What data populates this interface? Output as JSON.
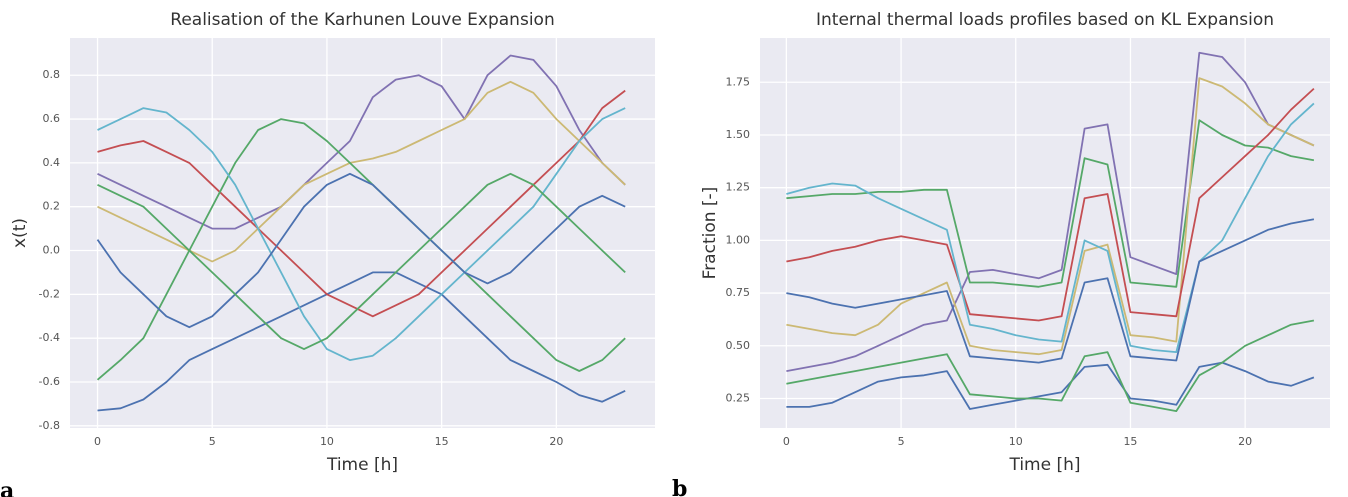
{
  "chart_data": [
    {
      "type": "line",
      "panel_label": "a",
      "title": "Realisation of the Karhunen Louve Expansion",
      "xlabel": "Time [h]",
      "ylabel": "x(t)",
      "x": [
        0,
        1,
        2,
        3,
        4,
        5,
        6,
        7,
        8,
        9,
        10,
        11,
        12,
        13,
        14,
        15,
        16,
        17,
        18,
        19,
        20,
        21,
        22,
        23
      ],
      "xlim": [
        -1.2,
        24.3
      ],
      "ylim": [
        -0.81,
        0.97
      ],
      "xticks": [
        0,
        5,
        10,
        15,
        20
      ],
      "yticks": [
        -0.8,
        -0.6,
        -0.4,
        -0.2,
        {
          "value": 0,
          "label": "0.0"
        },
        0.2,
        0.4,
        0.6,
        0.8
      ],
      "grid": true,
      "series": [
        {
          "color": "#8172b2",
          "values": [
            0.35,
            0.3,
            0.25,
            0.2,
            0.15,
            0.1,
            0.1,
            0.15,
            0.2,
            0.3,
            0.4,
            0.5,
            0.7,
            0.78,
            0.8,
            0.75,
            0.6,
            0.8,
            0.89,
            0.87,
            0.75,
            0.55,
            0.4,
            0.3
          ]
        },
        {
          "color": "#4c72b0",
          "values": [
            -0.73,
            -0.72,
            -0.68,
            -0.6,
            -0.5,
            -0.45,
            -0.4,
            -0.35,
            -0.3,
            -0.25,
            -0.2,
            -0.15,
            -0.1,
            -0.1,
            -0.15,
            -0.2,
            -0.3,
            -0.4,
            -0.5,
            -0.55,
            -0.6,
            -0.66,
            -0.69,
            -0.64
          ]
        },
        {
          "color": "#ccb974",
          "values": [
            0.2,
            0.15,
            0.1,
            0.05,
            0,
            -0.05,
            0,
            0.1,
            0.2,
            0.3,
            0.35,
            0.4,
            0.42,
            0.45,
            0.5,
            0.55,
            0.6,
            0.72,
            0.77,
            0.72,
            0.6,
            0.5,
            0.4,
            0.3
          ]
        },
        {
          "color": "#c44e52",
          "values": [
            0.45,
            0.48,
            0.5,
            0.45,
            0.4,
            0.3,
            0.2,
            0.1,
            0,
            -0.1,
            -0.2,
            -0.25,
            -0.3,
            -0.25,
            -0.2,
            -0.1,
            0,
            0.1,
            0.2,
            0.3,
            0.4,
            0.5,
            0.65,
            0.73
          ]
        },
        {
          "color": "#55a868",
          "values": [
            -0.59,
            -0.5,
            -0.4,
            -0.2,
            0,
            0.2,
            0.4,
            0.55,
            0.6,
            0.58,
            0.5,
            0.4,
            0.3,
            0.2,
            0.1,
            0,
            -0.1,
            -0.2,
            -0.3,
            -0.4,
            -0.5,
            -0.55,
            -0.5,
            -0.4
          ]
        },
        {
          "color": "#64b5cd",
          "values": [
            0.55,
            0.6,
            0.65,
            0.63,
            0.55,
            0.45,
            0.3,
            0.1,
            -0.1,
            -0.3,
            -0.45,
            -0.5,
            -0.48,
            -0.4,
            -0.3,
            -0.2,
            -0.1,
            0,
            0.1,
            0.2,
            0.35,
            0.5,
            0.6,
            0.65
          ]
        },
        {
          "color": "#4c72b0",
          "values": [
            0.05,
            -0.1,
            -0.2,
            -0.3,
            -0.35,
            -0.3,
            -0.2,
            -0.1,
            0.05,
            0.2,
            0.3,
            0.35,
            0.3,
            0.2,
            0.1,
            0,
            -0.1,
            -0.15,
            -0.1,
            0,
            0.1,
            0.2,
            0.25,
            0.2
          ]
        },
        {
          "color": "#55a868",
          "values": [
            0.3,
            0.25,
            0.2,
            0.1,
            0,
            -0.1,
            -0.2,
            -0.3,
            -0.4,
            -0.45,
            -0.4,
            -0.3,
            -0.2,
            -0.1,
            0,
            0.1,
            0.2,
            0.3,
            0.35,
            0.3,
            0.2,
            0.1,
            0,
            -0.1
          ]
        }
      ]
    },
    {
      "type": "line",
      "panel_label": "b",
      "title": "Internal thermal loads profiles based on KL Expansion",
      "xlabel": "Time [h]",
      "ylabel": "Fraction [-]",
      "x": [
        0,
        1,
        2,
        3,
        4,
        5,
        6,
        7,
        8,
        9,
        10,
        11,
        12,
        13,
        14,
        15,
        16,
        17,
        18,
        19,
        20,
        21,
        22,
        23
      ],
      "xlim": [
        -1.15,
        23.7
      ],
      "ylim": [
        0.11,
        1.96
      ],
      "xticks": [
        0,
        5,
        10,
        15,
        20
      ],
      "yticks": [
        0.25,
        {
          "value": 0.5,
          "label": "0.50"
        },
        0.75,
        {
          "value": 1,
          "label": "1.00"
        },
        1.25,
        {
          "value": 1.5,
          "label": "1.50"
        },
        1.75
      ],
      "grid": true,
      "series": [
        {
          "color": "#8172b2",
          "values": [
            0.38,
            0.4,
            0.42,
            0.45,
            0.5,
            0.55,
            0.6,
            0.62,
            0.85,
            0.86,
            0.84,
            0.82,
            0.86,
            1.53,
            1.55,
            0.92,
            0.88,
            0.84,
            1.89,
            1.87,
            1.75,
            1.55,
            1.5,
            1.45
          ]
        },
        {
          "color": "#4c72b0",
          "values": [
            0.21,
            0.21,
            0.23,
            0.28,
            0.33,
            0.35,
            0.36,
            0.38,
            0.2,
            0.22,
            0.24,
            0.26,
            0.28,
            0.4,
            0.41,
            0.25,
            0.24,
            0.22,
            0.4,
            0.42,
            0.38,
            0.33,
            0.31,
            0.35
          ]
        },
        {
          "color": "#55a868",
          "values": [
            1.2,
            1.21,
            1.22,
            1.22,
            1.23,
            1.23,
            1.24,
            1.24,
            0.8,
            0.8,
            0.79,
            0.78,
            0.8,
            1.39,
            1.36,
            0.8,
            0.79,
            0.78,
            1.57,
            1.5,
            1.45,
            1.44,
            1.4,
            1.38
          ]
        },
        {
          "color": "#ccb974",
          "values": [
            0.6,
            0.58,
            0.56,
            0.55,
            0.6,
            0.7,
            0.75,
            0.8,
            0.5,
            0.48,
            0.47,
            0.46,
            0.48,
            0.95,
            0.98,
            0.55,
            0.54,
            0.52,
            1.77,
            1.73,
            1.65,
            1.55,
            1.5,
            1.45
          ]
        },
        {
          "color": "#c44e52",
          "values": [
            0.9,
            0.92,
            0.95,
            0.97,
            1.0,
            1.02,
            1.0,
            0.98,
            0.65,
            0.64,
            0.63,
            0.62,
            0.64,
            1.2,
            1.22,
            0.66,
            0.65,
            0.64,
            1.2,
            1.3,
            1.4,
            1.5,
            1.62,
            1.72
          ]
        },
        {
          "color": "#64b5cd",
          "values": [
            1.22,
            1.25,
            1.27,
            1.26,
            1.2,
            1.15,
            1.1,
            1.05,
            0.6,
            0.58,
            0.55,
            0.53,
            0.52,
            1.0,
            0.95,
            0.5,
            0.48,
            0.47,
            0.9,
            1.0,
            1.2,
            1.4,
            1.55,
            1.65
          ]
        },
        {
          "color": "#55a868",
          "values": [
            0.32,
            0.34,
            0.36,
            0.38,
            0.4,
            0.42,
            0.44,
            0.46,
            0.27,
            0.26,
            0.25,
            0.25,
            0.24,
            0.45,
            0.47,
            0.23,
            0.21,
            0.19,
            0.36,
            0.42,
            0.5,
            0.55,
            0.6,
            0.62
          ]
        },
        {
          "color": "#4c72b0",
          "values": [
            0.75,
            0.73,
            0.7,
            0.68,
            0.7,
            0.72,
            0.74,
            0.76,
            0.45,
            0.44,
            0.43,
            0.42,
            0.44,
            0.8,
            0.82,
            0.45,
            0.44,
            0.43,
            0.9,
            0.95,
            1.0,
            1.05,
            1.08,
            1.1
          ]
        }
      ]
    }
  ]
}
